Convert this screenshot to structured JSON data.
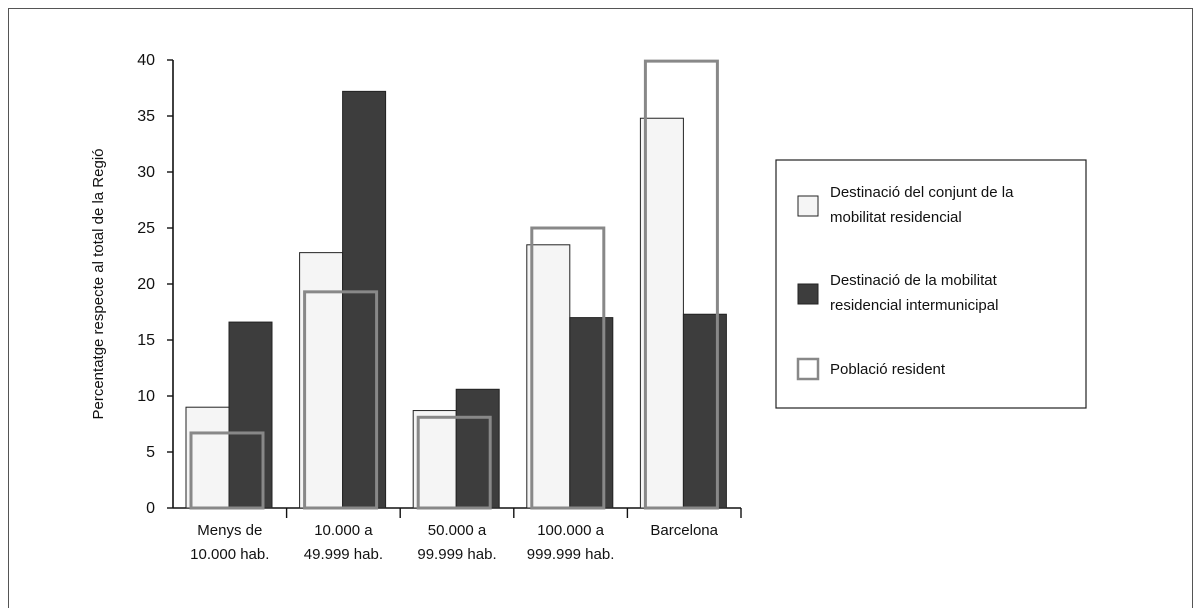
{
  "chart_data": {
    "type": "bar",
    "ylabel": "Percentatge respecte al total de la Regió",
    "xlabel": "",
    "ylim": [
      0,
      40
    ],
    "yticks": [
      "0",
      "5",
      "10",
      "15",
      "20",
      "25",
      "30",
      "35",
      "40"
    ],
    "categories": [
      [
        "Menys de",
        "10.000 hab."
      ],
      [
        "10.000 a",
        "49.999 hab."
      ],
      [
        "50.000 a",
        "99.999 hab."
      ],
      [
        "100.000 a",
        "999.999 hab."
      ],
      [
        "Barcelona"
      ]
    ],
    "series": [
      {
        "name": [
          "Destinació del conjunt de la",
          "mobilitat residencial"
        ],
        "values": [
          9,
          22.8,
          8.7,
          23.5,
          34.8
        ],
        "color": "#f5f5f5",
        "style": "filled"
      },
      {
        "name": [
          "Destinació de la mobilitat",
          "residencial intermunicipal"
        ],
        "values": [
          16.6,
          37.2,
          10.6,
          17.0,
          17.3
        ],
        "color": "#3d3d3d",
        "style": "filled"
      },
      {
        "name": [
          "Població resident"
        ],
        "values": [
          6.7,
          19.3,
          8.1,
          25.0,
          39.9
        ],
        "color": "#888888",
        "style": "outline"
      }
    ],
    "grid": false,
    "legend": "right"
  }
}
